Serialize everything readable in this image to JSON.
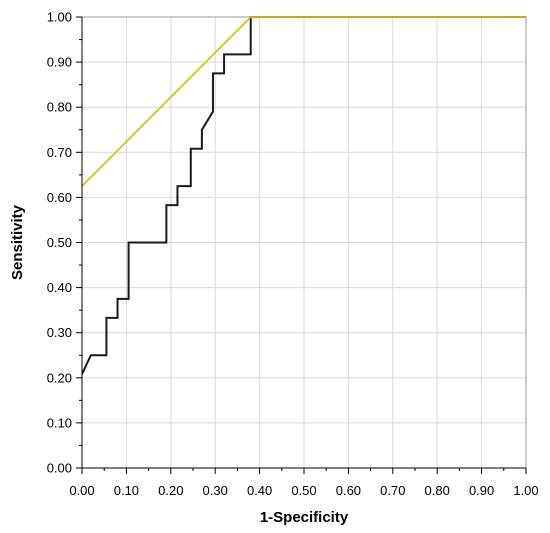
{
  "chart_data": {
    "type": "line",
    "xlabel": "1-Specificity",
    "ylabel": "Sensitivity",
    "xlim": [
      0,
      1
    ],
    "ylim": [
      0,
      1
    ],
    "grid": true,
    "x_ticks": [
      "0.00",
      "0.10",
      "0.20",
      "0.30",
      "0.40",
      "0.50",
      "0.60",
      "0.70",
      "0.80",
      "0.90",
      "1.00"
    ],
    "y_ticks": [
      "0.00",
      "0.10",
      "0.20",
      "0.30",
      "0.40",
      "0.50",
      "0.60",
      "0.70",
      "0.80",
      "0.90",
      "1.00"
    ],
    "series": [
      {
        "color": "#1a1a1a",
        "style": "step",
        "x": [
          0.0,
          0.02,
          0.02,
          0.055,
          0.055,
          0.08,
          0.08,
          0.105,
          0.105,
          0.19,
          0.19,
          0.215,
          0.215,
          0.245,
          0.245,
          0.27,
          0.27,
          0.295,
          0.295,
          0.32,
          0.32,
          0.38,
          0.38,
          1.0
        ],
        "y": [
          0.208,
          0.25,
          0.25,
          0.25,
          0.333,
          0.333,
          0.375,
          0.375,
          0.5,
          0.5,
          0.583,
          0.583,
          0.625,
          0.625,
          0.708,
          0.708,
          0.75,
          0.79,
          0.875,
          0.875,
          0.917,
          0.917,
          1.0,
          1.0
        ]
      },
      {
        "color": "#d4c21b",
        "style": "line",
        "x": [
          0.0,
          0.38,
          1.0
        ],
        "y": [
          0.625,
          1.0,
          1.0
        ]
      }
    ]
  }
}
